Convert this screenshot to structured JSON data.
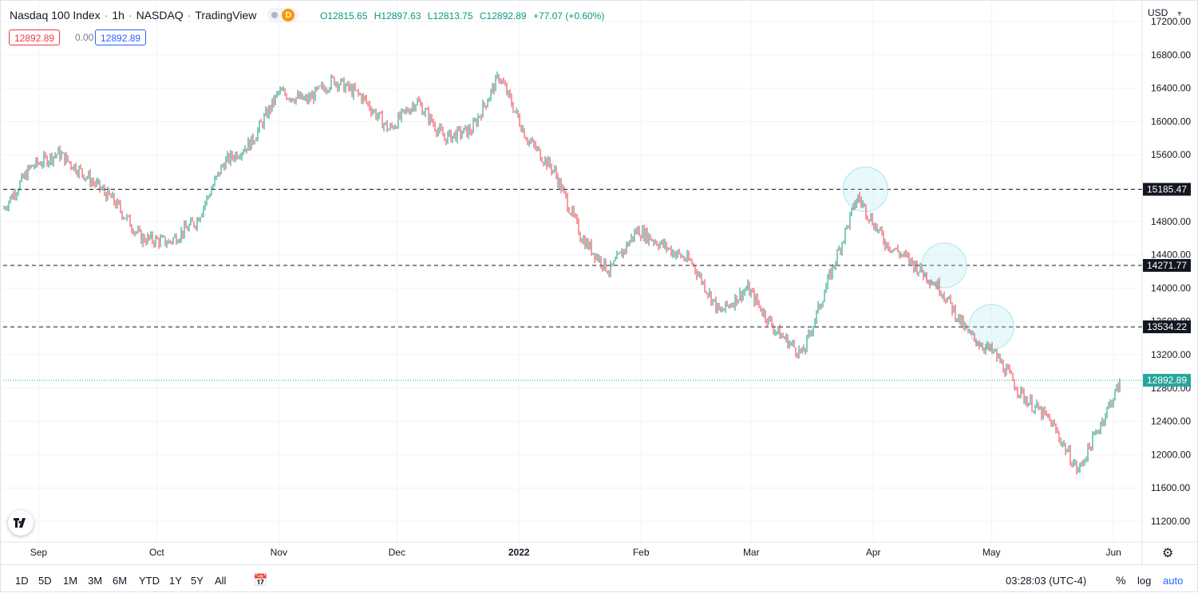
{
  "header": {
    "symbol": "Nasdaq 100 Index",
    "interval": "1h",
    "exchange": "NASDAQ",
    "source": "TradingView",
    "badge": "D",
    "ohlc": {
      "o": "O12815.65",
      "h": "H12897.63",
      "l": "L12813.75",
      "c": "C12892.89",
      "chg": "+77.07 (+0.60%)"
    },
    "bid": "12892.89",
    "spread": "0.00",
    "ask": "12892.89"
  },
  "currency": "USD",
  "colors": {
    "up": "#089981",
    "down": "#f23645",
    "circle": "#a8e6ee",
    "last": "#26a69a",
    "label_bg": "#131722"
  },
  "chart_data": {
    "type": "line",
    "title": "Nasdaq 100 Index · 1h · NASDAQ",
    "x": [
      "2021-08-23",
      "2021-08-30",
      "2021-09-06",
      "2021-09-13",
      "2021-09-20",
      "2021-09-27",
      "2021-10-04",
      "2021-10-11",
      "2021-10-18",
      "2021-10-25",
      "2021-11-01",
      "2021-11-08",
      "2021-11-15",
      "2021-11-22",
      "2021-11-29",
      "2021-12-06",
      "2021-12-13",
      "2021-12-20",
      "2021-12-27",
      "2022-01-03",
      "2022-01-10",
      "2022-01-17",
      "2022-01-24",
      "2022-01-31",
      "2022-02-07",
      "2022-02-14",
      "2022-02-21",
      "2022-02-28",
      "2022-03-07",
      "2022-03-14",
      "2022-03-21",
      "2022-03-28",
      "2022-04-04",
      "2022-04-11",
      "2022-04-18",
      "2022-04-25",
      "2022-05-02",
      "2022-05-09",
      "2022-05-16",
      "2022-05-23",
      "2022-05-31",
      "2022-06-03"
    ],
    "series": [
      {
        "values": [
          14950,
          15450,
          15620,
          15350,
          15050,
          14600,
          14550,
          14800,
          15500,
          15750,
          16350,
          16250,
          16500,
          16300,
          15900,
          16250,
          15800,
          15900,
          16550,
          15800,
          15400,
          14600,
          14200,
          14700,
          14500,
          14300,
          13700,
          14000,
          13500,
          13200,
          14150,
          15100,
          14550,
          14300,
          14000,
          13450,
          13200,
          12700,
          12400,
          11800,
          12600,
          12892.89
        ]
      }
    ],
    "y_ticks": [
      "17200.00",
      "16800.00",
      "16400.00",
      "16000.00",
      "15600.00",
      "15200.00",
      "14800.00",
      "14400.00",
      "14000.00",
      "13600.00",
      "13200.00",
      "12800.00",
      "12400.00",
      "12000.00",
      "11600.00",
      "11200.00"
    ],
    "x_ticks": [
      "Sep",
      "Oct",
      "Nov",
      "Dec",
      "2022",
      "Feb",
      "Mar",
      "Apr",
      "May",
      "Jun"
    ],
    "levels": [
      "15185.47",
      "14271.77",
      "13534.22"
    ],
    "last_price": "12892.89",
    "ylim": [
      10960,
      17250
    ]
  },
  "toolbar": {
    "ranges": [
      "1D",
      "5D",
      "1M",
      "3M",
      "6M",
      "YTD",
      "1Y",
      "5Y",
      "All"
    ],
    "clock": "03:28:03 (UTC-4)",
    "percent": "%",
    "log": "log",
    "auto": "auto"
  }
}
